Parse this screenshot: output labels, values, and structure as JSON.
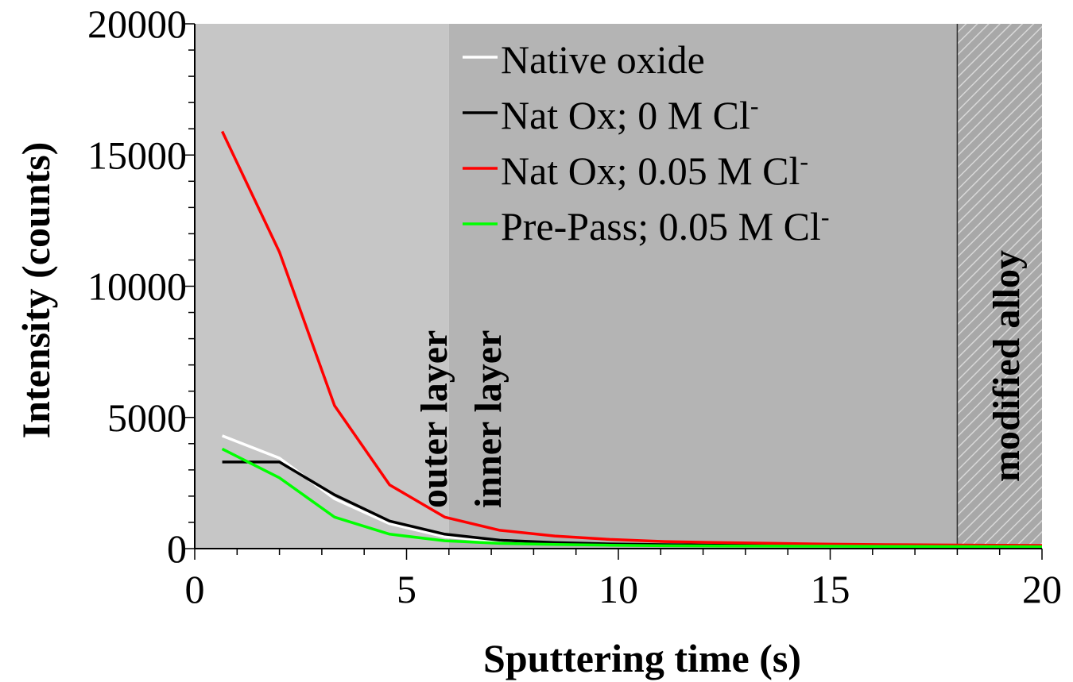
{
  "chart_data": {
    "type": "line",
    "xlabel": "Sputtering time (s)",
    "ylabel": "Intensity (counts)",
    "xlim": [
      0,
      20
    ],
    "ylim": [
      0,
      20000
    ],
    "x_ticks": [
      0,
      5,
      10,
      15,
      20
    ],
    "y_ticks": [
      0,
      5000,
      10000,
      15000,
      20000
    ],
    "x_tick_labels": [
      "0",
      "5",
      "10",
      "15",
      "20"
    ],
    "y_tick_labels": [
      "0",
      "5000",
      "10000",
      "15000",
      "20000"
    ],
    "grid": false,
    "legend_position": "top-right",
    "regions": [
      {
        "label": "outer layer",
        "x_start": 0,
        "x_end": 6,
        "color": "#c6c6c6",
        "hatched": false
      },
      {
        "label": "inner layer",
        "x_start": 6,
        "x_end": 18,
        "color": "#b4b4b4",
        "hatched": false
      },
      {
        "label": "modified alloy",
        "x_start": 18,
        "x_end": 20,
        "color": "#a8a8a8",
        "hatched": true
      }
    ],
    "series": [
      {
        "name": "Native oxide",
        "name_main": "Native oxide",
        "name_sup": "",
        "color": "#ffffff",
        "x": [
          0.65,
          2.0,
          3.3,
          4.6,
          5.9,
          7.2,
          8.5,
          9.8,
          11.1,
          12.4,
          13.7,
          15.0,
          16.3,
          17.6,
          18.9,
          20.0
        ],
        "y": [
          4300,
          3450,
          1900,
          950,
          450,
          280,
          200,
          160,
          140,
          120,
          110,
          100,
          95,
          90,
          85,
          80
        ]
      },
      {
        "name": "Nat Ox; 0 M Cl-",
        "name_main": "Nat Ox; 0 M Cl",
        "name_sup": "-",
        "color": "#000000",
        "x": [
          0.65,
          2.0,
          3.3,
          4.6,
          5.9,
          7.2,
          8.5,
          9.8,
          11.1,
          12.4,
          13.7,
          15.0,
          16.3,
          17.6,
          18.9,
          20.0
        ],
        "y": [
          3300,
          3300,
          2050,
          1050,
          550,
          320,
          230,
          180,
          150,
          130,
          120,
          110,
          100,
          95,
          90,
          85
        ]
      },
      {
        "name": "Nat Ox; 0.05 M Cl-",
        "name_main": "Nat Ox; 0.05 M Cl",
        "name_sup": "-",
        "color": "#ff0000",
        "x": [
          0.65,
          2.0,
          3.3,
          4.6,
          5.9,
          7.2,
          8.5,
          9.8,
          11.1,
          12.4,
          13.7,
          15.0,
          16.3,
          17.6,
          18.9,
          20.0
        ],
        "y": [
          15900,
          11300,
          5450,
          2430,
          1200,
          700,
          480,
          350,
          270,
          230,
          200,
          170,
          150,
          140,
          130,
          120
        ]
      },
      {
        "name": "Pre-Pass; 0.05 M Cl-",
        "name_main": "Pre-Pass; 0.05 M Cl",
        "name_sup": "-",
        "color": "#00ff00",
        "x": [
          0.65,
          2.0,
          3.3,
          4.6,
          5.9,
          7.2,
          8.5,
          9.8,
          11.1,
          12.4,
          13.7,
          15.0,
          16.3,
          17.6,
          18.9,
          20.0
        ],
        "y": [
          3800,
          2700,
          1200,
          550,
          300,
          200,
          160,
          130,
          110,
          100,
          95,
          90,
          85,
          80,
          75,
          70
        ]
      }
    ]
  }
}
